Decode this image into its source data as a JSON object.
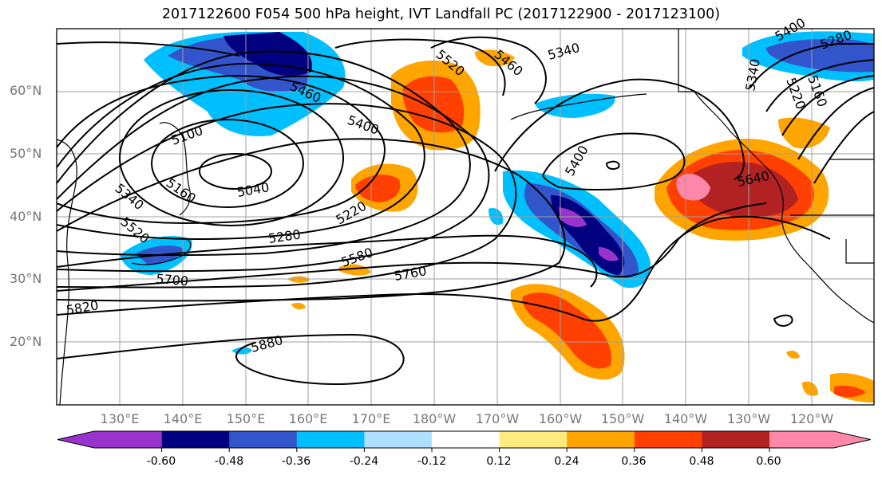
{
  "title": "2017122600 F054 500 hPa height, IVT Landfall PC (2017122900 - 2017123100)",
  "map": {
    "lat_labels": [
      "60°N",
      "50°N",
      "40°N",
      "30°N",
      "20°N"
    ],
    "lon_labels": [
      "130°E",
      "140°E",
      "150°E",
      "160°E",
      "170°E",
      "180°W",
      "170°W",
      "160°W",
      "150°W",
      "140°W",
      "130°W",
      "120°W"
    ],
    "contour_labels": [
      "5400",
      "5280",
      "5520",
      "5460",
      "5400",
      "5460",
      "5340",
      "5100",
      "5160",
      "5040",
      "5220",
      "5280",
      "5340",
      "5520",
      "5580",
      "5700",
      "5760",
      "5820",
      "5880",
      "5640",
      "5400",
      "5340",
      "5220",
      "5160"
    ]
  },
  "colorbar": {
    "colors": [
      "#9933cc",
      "#000080",
      "#3355cc",
      "#00bfff",
      "#b0e0ff",
      "#ffffff",
      "#ffeb80",
      "#ffa500",
      "#ff4000",
      "#b22222",
      "#ff88aa"
    ],
    "tick_labels": [
      "-0.60",
      "-0.48",
      "-0.36",
      "-0.24",
      "-0.12",
      "0.12",
      "0.24",
      "0.36",
      "0.48",
      "0.60"
    ]
  }
}
